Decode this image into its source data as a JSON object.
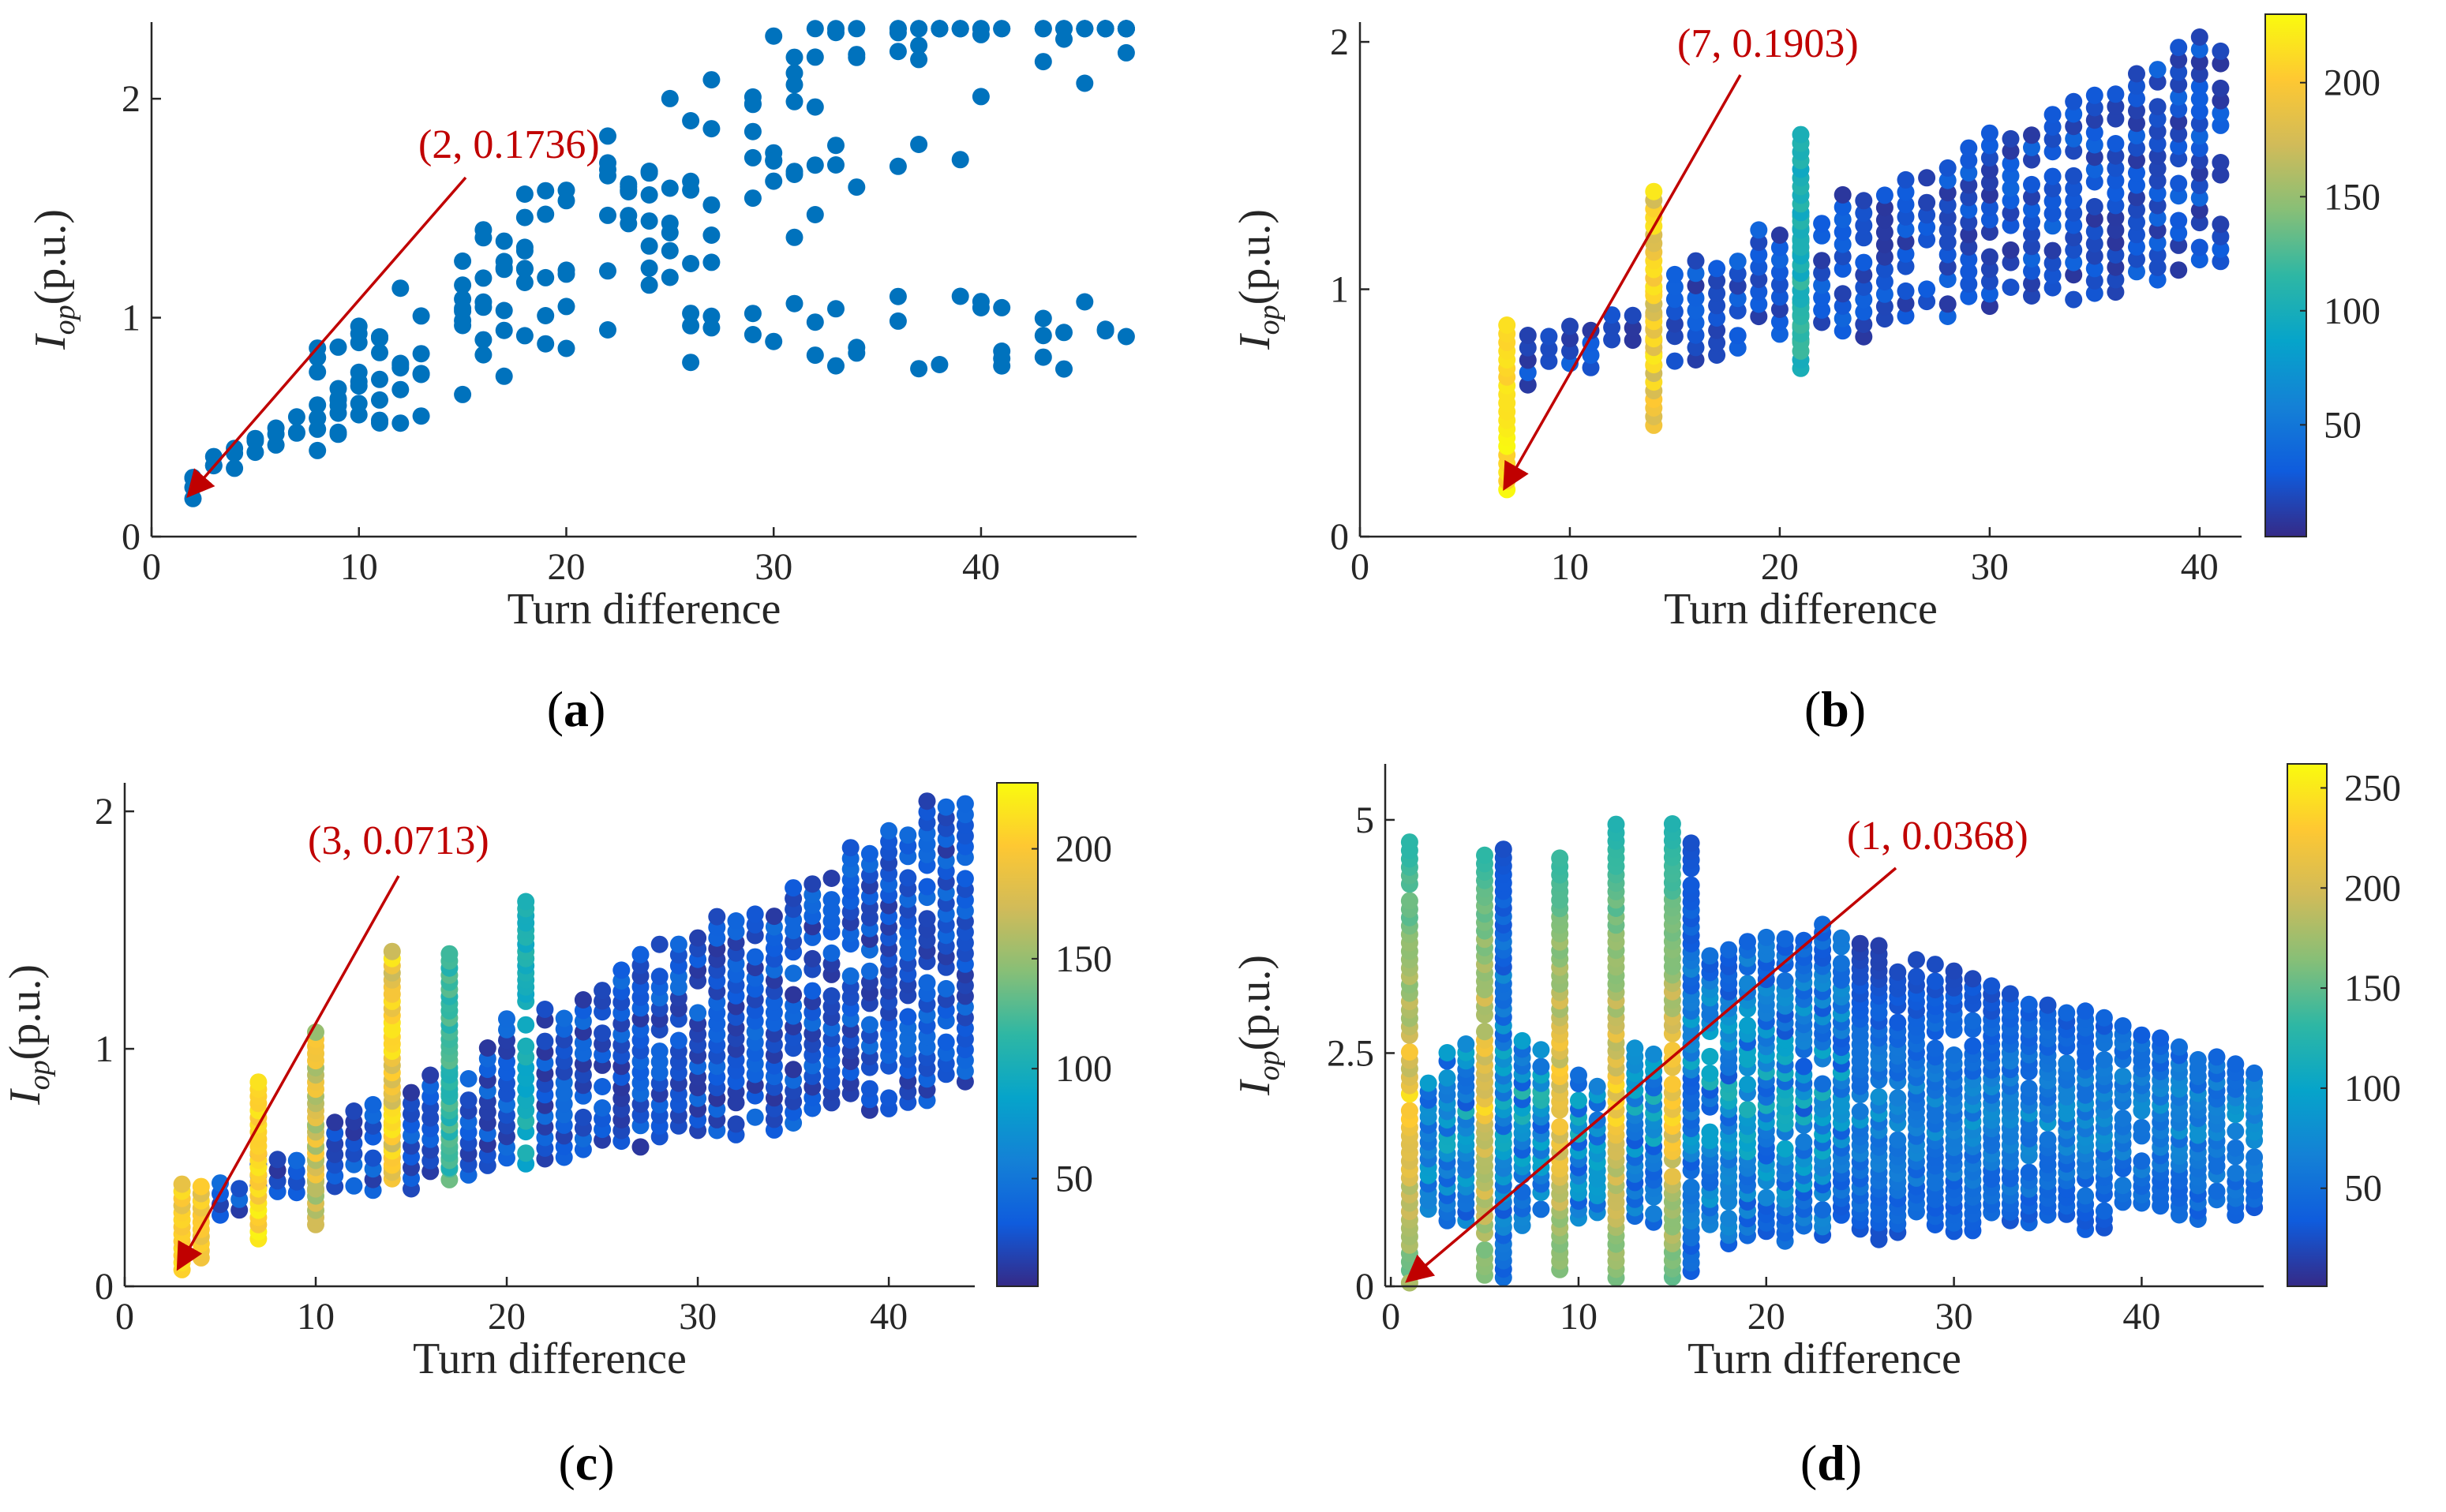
{
  "chart_data": [
    {
      "id": "a",
      "type": "scatter",
      "panel_label": "a",
      "xlabel": "Turn difference",
      "ylabel_main": "I",
      "ylabel_sub": "op",
      "ylabel_unit": "(p.u.)",
      "xlim": [
        0,
        47.5
      ],
      "ylim": [
        0,
        2.35
      ],
      "xticks": [
        "0",
        "10",
        "20",
        "30",
        "40"
      ],
      "yticks": [
        "0",
        "1",
        "2"
      ],
      "xtick_values": [
        0,
        10,
        20,
        30,
        40
      ],
      "ytick_values": [
        0,
        1,
        2
      ],
      "annotation": {
        "text": "(2, 0.1736)",
        "x": 1.7,
        "y": 0.18
      },
      "colorbar": null,
      "point_color": "#0072BD"
    },
    {
      "id": "b",
      "type": "scatter",
      "panel_label": "b",
      "xlabel": "Turn difference",
      "ylabel_main": "I",
      "ylabel_sub": "op",
      "ylabel_unit": "(p.u.)",
      "xlim": [
        0,
        42
      ],
      "ylim": [
        0,
        2.08
      ],
      "xticks": [
        "0",
        "10",
        "20",
        "30",
        "40"
      ],
      "yticks": [
        "0",
        "1",
        "2"
      ],
      "xtick_values": [
        0,
        10,
        20,
        30,
        40
      ],
      "ytick_values": [
        0,
        1,
        2
      ],
      "annotation": {
        "text": "(7, 0.1903)",
        "x": 6.8,
        "y": 0.19
      },
      "colorbar": {
        "ticks": [
          "50",
          "100",
          "150",
          "200"
        ],
        "tick_values": [
          50,
          100,
          150,
          200
        ],
        "range": [
          1,
          230
        ]
      }
    },
    {
      "id": "c",
      "type": "scatter",
      "panel_label": "c",
      "xlabel": "Turn difference",
      "ylabel_main": "I",
      "ylabel_sub": "op",
      "ylabel_unit": "(p.u.)",
      "xlim": [
        0,
        44.5
      ],
      "ylim": [
        0,
        2.12
      ],
      "xticks": [
        "0",
        "10",
        "20",
        "30",
        "40"
      ],
      "yticks": [
        "0",
        "1",
        "2"
      ],
      "xtick_values": [
        0,
        10,
        20,
        30,
        40
      ],
      "ytick_values": [
        0,
        1,
        2
      ],
      "annotation": {
        "text": "(3, 0.0713)",
        "x": 2.7,
        "y": 0.07
      },
      "colorbar": {
        "ticks": [
          "50",
          "100",
          "150",
          "200"
        ],
        "tick_values": [
          50,
          100,
          150,
          200
        ],
        "range": [
          1,
          230
        ]
      }
    },
    {
      "id": "d",
      "type": "scatter",
      "panel_label": "d",
      "xlabel": "Turn difference",
      "ylabel_main": "I",
      "ylabel_sub": "op",
      "ylabel_unit": "(p.u.)",
      "xlim": [
        -0.3,
        46.5
      ],
      "ylim": [
        0,
        5.6
      ],
      "xticks": [
        "0",
        "10",
        "20",
        "30",
        "40"
      ],
      "yticks": [
        "0",
        "2.5",
        "5"
      ],
      "xtick_values": [
        0,
        10,
        20,
        30,
        40
      ],
      "ytick_values": [
        0,
        2.5,
        5
      ],
      "annotation": {
        "text": "(1, 0.0368)",
        "x": 0.8,
        "y": 0.04
      },
      "colorbar": {
        "ticks": [
          "50",
          "100",
          "150",
          "200",
          "250"
        ],
        "tick_values": [
          50,
          100,
          150,
          200,
          250
        ],
        "range": [
          1,
          262
        ]
      }
    }
  ]
}
